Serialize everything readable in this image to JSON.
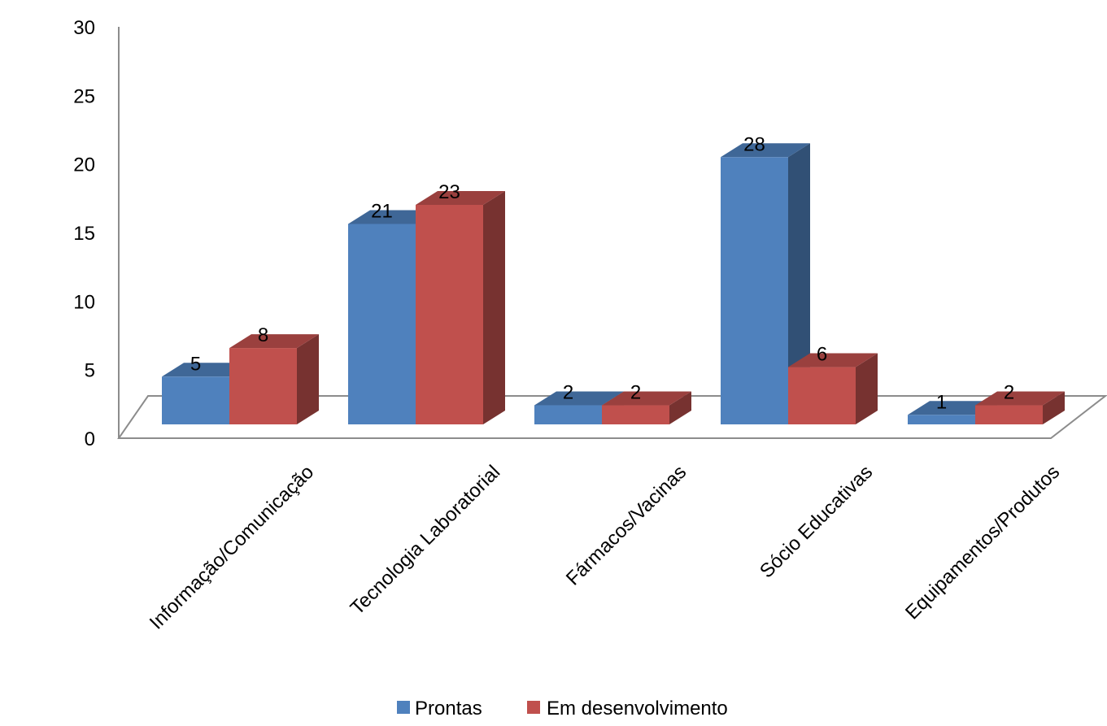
{
  "chart_data": {
    "type": "bar",
    "title": "",
    "xlabel": "",
    "ylabel": "",
    "ylim": [
      0,
      30
    ],
    "yticks": [
      0,
      5,
      10,
      15,
      20,
      25,
      30
    ],
    "categories": [
      "Informação/Comunicação",
      "Tecnologia Laboratorial",
      "Fármacos/Vacinas",
      "Sócio Educativas",
      "Equipamentos/Produtos"
    ],
    "series": [
      {
        "name": "Prontas",
        "values": [
          5,
          21,
          2,
          28,
          1
        ],
        "color": "#4F81BD"
      },
      {
        "name": "Em desenvolvimento",
        "values": [
          8,
          23,
          2,
          6,
          2
        ],
        "color": "#C0504D"
      }
    ],
    "grid": false,
    "three_d": true,
    "legend_position": "bottom",
    "data_labels": true
  }
}
